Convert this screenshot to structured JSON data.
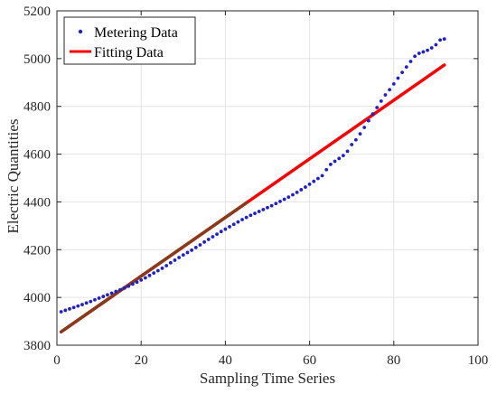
{
  "chart_data": {
    "type": "line",
    "xlabel": "Sampling Time Series",
    "ylabel": "Electric Quantities",
    "xlim": [
      0,
      100
    ],
    "ylim": [
      3800,
      5200
    ],
    "xticks": [
      0,
      20,
      40,
      60,
      80,
      100
    ],
    "yticks": [
      3800,
      4000,
      4200,
      4400,
      4600,
      4800,
      5000,
      5200
    ],
    "grid": true,
    "legend_position": "top-left",
    "series": [
      {
        "name": "Metering Data",
        "style": "dots",
        "color": "#1f1fcc",
        "x": [
          1,
          2,
          3,
          4,
          5,
          6,
          7,
          8,
          9,
          10,
          11,
          12,
          13,
          14,
          15,
          16,
          17,
          18,
          19,
          20,
          21,
          22,
          23,
          24,
          25,
          26,
          27,
          28,
          29,
          30,
          31,
          32,
          33,
          34,
          35,
          36,
          37,
          38,
          39,
          40,
          41,
          42,
          43,
          44,
          45,
          46,
          47,
          48,
          49,
          50,
          51,
          52,
          53,
          54,
          55,
          56,
          57,
          58,
          59,
          60,
          61,
          62,
          63,
          64,
          65,
          66,
          67,
          68,
          69,
          70,
          71,
          72,
          73,
          74,
          75,
          76,
          77,
          78,
          79,
          80,
          81,
          82,
          83,
          84,
          85,
          86,
          87,
          88,
          89,
          90,
          91,
          92
        ],
        "y": [
          3940,
          3946,
          3952,
          3958,
          3964,
          3970,
          3977,
          3983,
          3990,
          3997,
          4004,
          4011,
          4018,
          4025,
          4032,
          4039,
          4047,
          4056,
          4064,
          4073,
          4082,
          4092,
          4102,
          4112,
          4122,
          4133,
          4145,
          4156,
          4167,
          4178,
          4188,
          4198,
          4209,
          4220,
          4232,
          4243,
          4254,
          4265,
          4276,
          4286,
          4296,
          4306,
          4316,
          4326,
          4335,
          4344,
          4352,
          4360,
          4368,
          4376,
          4384,
          4393,
          4402,
          4411,
          4420,
          4430,
          4440,
          4451,
          4462,
          4474,
          4486,
          4498,
          4510,
          4535,
          4557,
          4570,
          4582,
          4594,
          4612,
          4640,
          4660,
          4685,
          4712,
          4740,
          4768,
          4795,
          4822,
          4848,
          4870,
          4894,
          4918,
          4942,
          4965,
          4988,
          5010,
          5022,
          5028,
          5035,
          5045,
          5058,
          5078,
          5082
        ]
      },
      {
        "name": "Fitting Data",
        "style": "line",
        "color": "#ff0000",
        "x": [
          1,
          92
        ],
        "y": [
          3856,
          4973
        ]
      }
    ]
  }
}
